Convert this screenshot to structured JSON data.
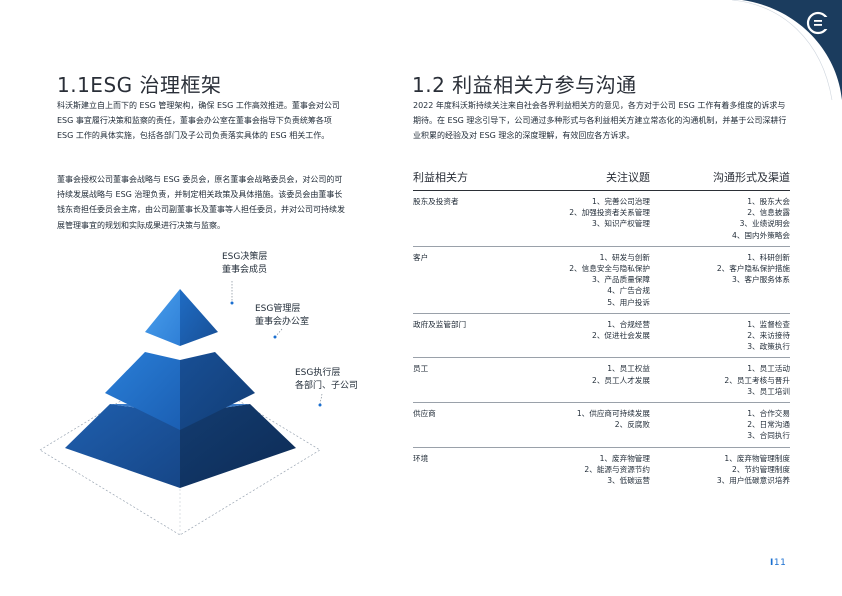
{
  "colors": {
    "navy": "#1b3c5e",
    "pyramid_top": "#3b8de3",
    "pyramid_mid": "#1e65b8",
    "pyramid_bottom": "#15427a",
    "accent": "#1a6fd0"
  },
  "icons": {
    "logo": "company-logo-icon"
  },
  "left": {
    "title": "1.1ESG 治理框架",
    "paragraph1": "科沃斯建立自上而下的 ESG 管理架构，确保 ESG 工作高效推进。董事会对公司 ESG 事宜履行决策和监察的责任，董事会办公室在董事会指导下负责统筹各项 ESG 工作的具体实施，包括各部门及子公司负责落实具体的 ESG 相关工作。",
    "paragraph2": "董事会授权公司董事会战略与 ESG 委员会，原名董事会战略委员会，对公司的可持续发展战略与 ESG 治理负责，并制定相关政策及具体措施。该委员会由董事长钱东奇担任委员会主席，由公司副董事长及董事等人担任委员，并对公司可持续发展管理事宜的规划和实际成果进行决策与监察。",
    "pyramid": {
      "level1": {
        "line1": "ESG决策层",
        "line2": "董事会成员"
      },
      "level2": {
        "line1": "ESG管理层",
        "line2": "董事会办公室"
      },
      "level3": {
        "line1": "ESG执行层",
        "line2": "各部门、子公司"
      }
    }
  },
  "right": {
    "title": "1.2 利益相关方参与沟通",
    "paragraph": "2022 年度科沃斯持续关注来自社会各界利益相关方的意见，各方对于公司 ESG 工作有着多维度的诉求与期待。在 ESG 理念引导下，公司通过多种形式与各利益相关方建立常态化的沟通机制，并基于公司深耕行业积累的经验及对 ESG 理念的深度理解，有效回应各方诉求。",
    "table": {
      "headers": [
        "利益相关方",
        "关注议题",
        "沟通形式及渠道"
      ],
      "rows": [
        {
          "party": "股东及投资者",
          "issues": [
            "1、完善公司治理",
            "2、加强投资者关系管理",
            "3、知识产权管理"
          ],
          "channels": [
            "1、股东大会",
            "2、信息披露",
            "3、业绩说明会",
            "4、国内外策略会"
          ]
        },
        {
          "party": "客户",
          "issues": [
            "1、研发与创新",
            "2、信息安全与隐私保护",
            "3、产品质量保障",
            "4、广告合规",
            "5、用户投诉"
          ],
          "channels": [
            "1、科研创新",
            "2、客户隐私保护措施",
            "3、客户服务体系"
          ]
        },
        {
          "party": "政府及监管部门",
          "issues": [
            "1、合规经营",
            "2、促进社会发展"
          ],
          "channels": [
            "1、监督检查",
            "2、来访接待",
            "3、政策执行"
          ]
        },
        {
          "party": "员工",
          "issues": [
            "1、员工权益",
            "2、员工人才发展"
          ],
          "channels": [
            "1、员工活动",
            "2、员工考核与晋升",
            "3、员工培训"
          ]
        },
        {
          "party": "供应商",
          "issues": [
            "1、供应商可持续发展",
            "2、反腐败"
          ],
          "channels": [
            "1、合作交易",
            "2、日常沟通",
            "3、合同执行"
          ]
        },
        {
          "party": "环境",
          "issues": [
            "1、废弃物管理",
            "2、能源与资源节约",
            "3、低碳运营"
          ],
          "channels": [
            "1、废弃物管理制度",
            "2、节约管理制度",
            "3、用户低碳意识培养"
          ]
        }
      ]
    }
  },
  "page_number": "11"
}
